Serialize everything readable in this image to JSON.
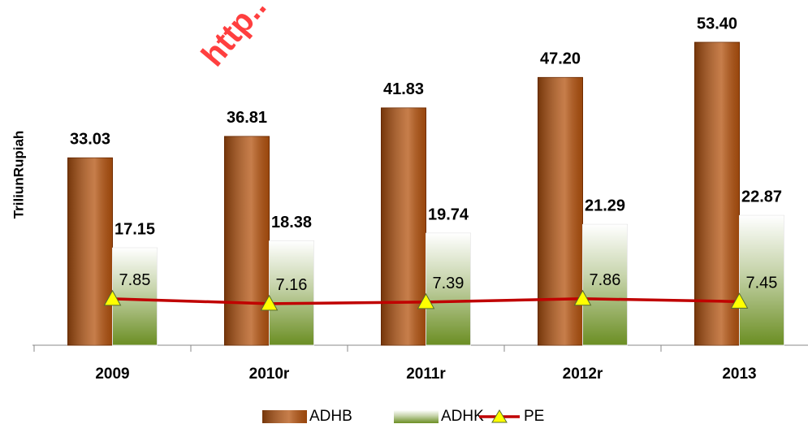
{
  "chart_data": {
    "type": "bar",
    "watermark": "http..",
    "y_label": "TriliunRupiah",
    "categories": [
      "2009",
      "2010r",
      "2011r",
      "2012r",
      "2013"
    ],
    "ylim": [
      0,
      60
    ],
    "y2lim": [
      1.3,
      49.3
    ],
    "legend": "bottom",
    "series": [
      {
        "name": "ADHB",
        "type": "bar",
        "color": "#b4530f",
        "values": [
          33.03,
          36.81,
          41.83,
          47.2,
          53.4
        ],
        "value_labels": [
          "33.03",
          "36.81",
          "41.83",
          "47.20",
          "53.40"
        ]
      },
      {
        "name": "ADHK",
        "type": "bar",
        "color": "#6b8e23",
        "values": [
          17.15,
          18.38,
          19.74,
          21.29,
          22.87
        ]
      },
      {
        "name": "PE",
        "type": "line",
        "axis": "y2",
        "color": "#c00000",
        "marker_color": "#ffff00",
        "values": [
          7.85,
          7.16,
          7.39,
          7.86,
          7.45
        ]
      }
    ]
  }
}
